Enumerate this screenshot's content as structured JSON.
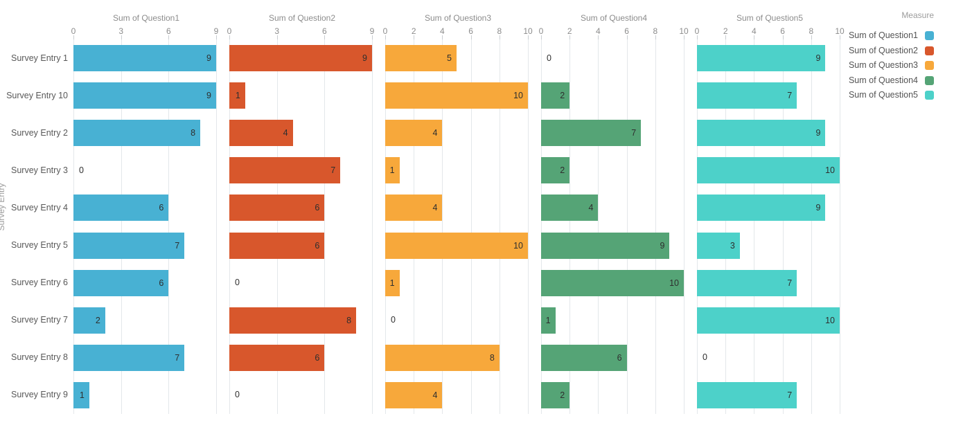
{
  "chart_data": {
    "type": "bar",
    "orientation": "horizontal",
    "row_axis_title": "Survey Entry",
    "categories": [
      "Survey Entry 1",
      "Survey Entry 10",
      "Survey Entry 2",
      "Survey Entry 3",
      "Survey Entry 4",
      "Survey Entry 5",
      "Survey Entry 6",
      "Survey Entry 7",
      "Survey Entry 8",
      "Survey Entry 9"
    ],
    "panels": [
      {
        "title": "Sum of Question1",
        "color": "#48B1D3",
        "ticks": [
          0,
          3,
          6,
          9
        ],
        "xlim": [
          0,
          9.2
        ],
        "values": [
          9,
          9,
          8,
          0,
          6,
          7,
          6,
          2,
          7,
          1
        ]
      },
      {
        "title": "Sum of Question2",
        "color": "#D8572C",
        "ticks": [
          0,
          3,
          6,
          9
        ],
        "xlim": [
          0,
          9.2
        ],
        "values": [
          9,
          1,
          4,
          7,
          6,
          6,
          0,
          8,
          6,
          0
        ]
      },
      {
        "title": "Sum of Question3",
        "color": "#F7A83B",
        "ticks": [
          0,
          2,
          4,
          6,
          8,
          10
        ],
        "xlim": [
          0,
          10.2
        ],
        "values": [
          5,
          10,
          4,
          1,
          4,
          10,
          1,
          0,
          8,
          4
        ]
      },
      {
        "title": "Sum of Question4",
        "color": "#55A476",
        "ticks": [
          0,
          2,
          4,
          6,
          8,
          10
        ],
        "xlim": [
          0,
          10.2
        ],
        "values": [
          0,
          2,
          7,
          2,
          4,
          9,
          10,
          1,
          6,
          2
        ]
      },
      {
        "title": "Sum of Question5",
        "color": "#4DD1C9",
        "ticks": [
          0,
          2,
          4,
          6,
          8,
          10
        ],
        "xlim": [
          0,
          10.2
        ],
        "values": [
          9,
          7,
          9,
          10,
          9,
          3,
          7,
          10,
          0,
          7
        ]
      }
    ],
    "legend": {
      "title": "Measure",
      "items": [
        {
          "label": "Sum of Question1",
          "color": "#48B1D3"
        },
        {
          "label": "Sum of Question2",
          "color": "#D8572C"
        },
        {
          "label": "Sum of Question3",
          "color": "#F7A83B"
        },
        {
          "label": "Sum of Question4",
          "color": "#55A476"
        },
        {
          "label": "Sum of Question5",
          "color": "#4DD1C9"
        }
      ]
    },
    "grid": true,
    "legend_position": "top-right"
  }
}
